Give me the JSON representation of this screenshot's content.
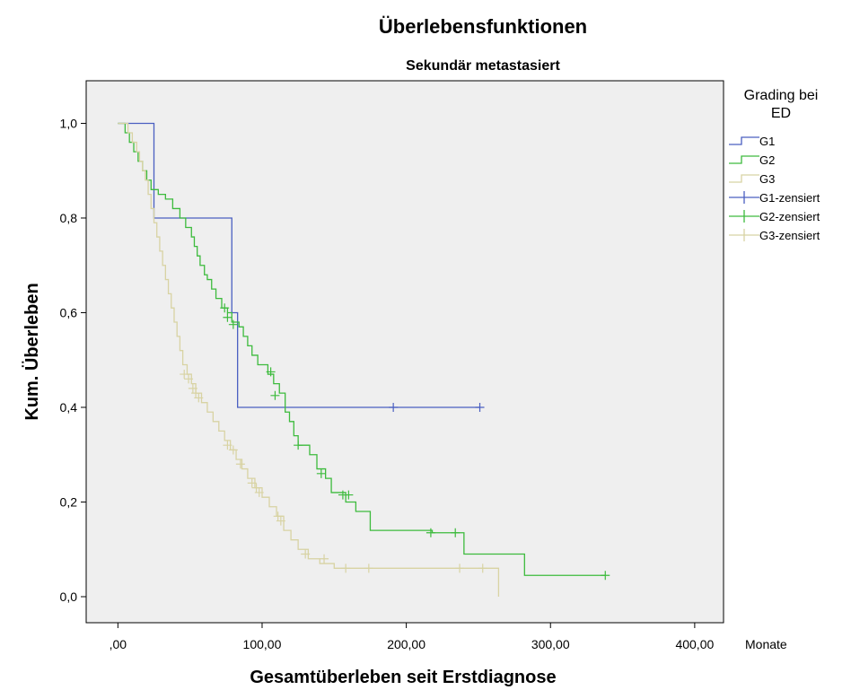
{
  "chart_data": {
    "type": "line",
    "title": "Überlebensfunktionen",
    "subtitle": "Sekundär metastasiert",
    "xlabel": "Gesamtüberleben seit Erstdiagnose",
    "ylabel": "Kum. Überleben",
    "x_unit": "Monate",
    "xlim": [
      -22,
      420
    ],
    "ylim": [
      -0.055,
      1.09
    ],
    "x_ticks": [
      0,
      100,
      200,
      300,
      400
    ],
    "x_tick_labels": [
      ",00",
      "100,00",
      "200,00",
      "300,00",
      "400,00"
    ],
    "y_ticks": [
      0,
      0.2,
      0.4,
      0.6,
      0.8,
      1.0
    ],
    "y_tick_labels": [
      "0,0",
      "0,2",
      "0,4",
      "0,6",
      "0,8",
      "1,0"
    ],
    "grid": false,
    "plot_background": "#efefef",
    "legend": {
      "title": "Grading bei ED",
      "title_lines": [
        "Grading bei",
        "ED"
      ],
      "placement": "right",
      "entries": [
        "G1",
        "G2",
        "G3",
        "G1-zensiert",
        "G2-zensiert",
        "G3-zensiert"
      ]
    },
    "series": [
      {
        "name": "G1",
        "color": "#4a5fc1",
        "steps": [
          [
            0,
            1.0
          ],
          [
            25,
            0.8
          ],
          [
            79,
            0.6
          ],
          [
            83,
            0.4
          ],
          [
            251,
            0.4
          ]
        ],
        "censored": [
          [
            191,
            0.4
          ],
          [
            251,
            0.4
          ]
        ]
      },
      {
        "name": "G2",
        "color": "#3dbb3d",
        "steps": [
          [
            0,
            1.0
          ],
          [
            5,
            0.98
          ],
          [
            8,
            0.96
          ],
          [
            11,
            0.94
          ],
          [
            14,
            0.92
          ],
          [
            17,
            0.9
          ],
          [
            20,
            0.88
          ],
          [
            23,
            0.86
          ],
          [
            28,
            0.85
          ],
          [
            33,
            0.84
          ],
          [
            38,
            0.82
          ],
          [
            43,
            0.8
          ],
          [
            47,
            0.78
          ],
          [
            51,
            0.76
          ],
          [
            53,
            0.74
          ],
          [
            55,
            0.72
          ],
          [
            57,
            0.7
          ],
          [
            60,
            0.68
          ],
          [
            62,
            0.67
          ],
          [
            65,
            0.65
          ],
          [
            68,
            0.63
          ],
          [
            72,
            0.61
          ],
          [
            76,
            0.6
          ],
          [
            79,
            0.58
          ],
          [
            84,
            0.57
          ],
          [
            87,
            0.55
          ],
          [
            90,
            0.53
          ],
          [
            93,
            0.51
          ],
          [
            97,
            0.49
          ],
          [
            104,
            0.47
          ],
          [
            108,
            0.45
          ],
          [
            112,
            0.43
          ],
          [
            116,
            0.39
          ],
          [
            119,
            0.37
          ],
          [
            122,
            0.34
          ],
          [
            125,
            0.32
          ],
          [
            133,
            0.3
          ],
          [
            138,
            0.27
          ],
          [
            144,
            0.25
          ],
          [
            148,
            0.22
          ],
          [
            158,
            0.2
          ],
          [
            165,
            0.18
          ],
          [
            175,
            0.14
          ],
          [
            218,
            0.135
          ],
          [
            240,
            0.09
          ],
          [
            282,
            0.045
          ],
          [
            338,
            0.045
          ]
        ],
        "censored": [
          [
            74,
            0.61
          ],
          [
            76,
            0.59
          ],
          [
            80,
            0.575
          ],
          [
            106,
            0.475
          ],
          [
            109,
            0.425
          ],
          [
            125,
            0.32
          ],
          [
            141,
            0.26
          ],
          [
            156,
            0.215
          ],
          [
            160,
            0.215
          ],
          [
            217,
            0.135
          ],
          [
            234,
            0.135
          ],
          [
            338,
            0.045
          ]
        ]
      },
      {
        "name": "G3",
        "color": "#d8d3a3",
        "steps": [
          [
            0,
            1.0
          ],
          [
            7,
            0.98
          ],
          [
            10,
            0.96
          ],
          [
            13,
            0.94
          ],
          [
            15,
            0.92
          ],
          [
            17,
            0.9
          ],
          [
            19,
            0.88
          ],
          [
            21,
            0.85
          ],
          [
            23,
            0.82
          ],
          [
            25,
            0.79
          ],
          [
            27,
            0.76
          ],
          [
            29,
            0.73
          ],
          [
            31,
            0.7
          ],
          [
            33,
            0.67
          ],
          [
            35,
            0.64
          ],
          [
            37,
            0.61
          ],
          [
            39,
            0.58
          ],
          [
            41,
            0.55
          ],
          [
            43,
            0.52
          ],
          [
            45,
            0.49
          ],
          [
            48,
            0.47
          ],
          [
            51,
            0.45
          ],
          [
            54,
            0.43
          ],
          [
            58,
            0.41
          ],
          [
            62,
            0.39
          ],
          [
            66,
            0.37
          ],
          [
            70,
            0.35
          ],
          [
            74,
            0.33
          ],
          [
            78,
            0.31
          ],
          [
            82,
            0.29
          ],
          [
            86,
            0.27
          ],
          [
            90,
            0.25
          ],
          [
            95,
            0.23
          ],
          [
            100,
            0.21
          ],
          [
            105,
            0.19
          ],
          [
            110,
            0.17
          ],
          [
            115,
            0.14
          ],
          [
            120,
            0.12
          ],
          [
            125,
            0.1
          ],
          [
            132,
            0.08
          ],
          [
            140,
            0.07
          ],
          [
            150,
            0.06
          ],
          [
            160,
            0.06
          ],
          [
            262,
            0.06
          ],
          [
            264,
            0.0
          ]
        ],
        "censored": [
          [
            46,
            0.47
          ],
          [
            49,
            0.46
          ],
          [
            52,
            0.44
          ],
          [
            54,
            0.43
          ],
          [
            56,
            0.42
          ],
          [
            76,
            0.32
          ],
          [
            80,
            0.31
          ],
          [
            85,
            0.28
          ],
          [
            93,
            0.24
          ],
          [
            96,
            0.23
          ],
          [
            98,
            0.22
          ],
          [
            111,
            0.17
          ],
          [
            113,
            0.16
          ],
          [
            130,
            0.09
          ],
          [
            143,
            0.08
          ],
          [
            158,
            0.06
          ],
          [
            174,
            0.06
          ],
          [
            237,
            0.06
          ],
          [
            253,
            0.06
          ]
        ]
      }
    ]
  }
}
